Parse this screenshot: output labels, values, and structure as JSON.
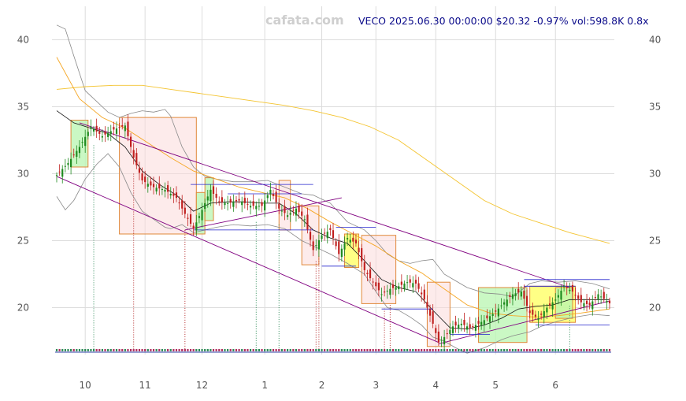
{
  "watermark": "cafata.com",
  "header": "VECO 2025.06.30 00:00:00 $20.32 -0.97% vol:598.8K 0.8x",
  "chart_data": {
    "type": "candlestick",
    "symbol": "VECO",
    "last": {
      "date": "2025.06.30 00:00:00",
      "close": 20.32,
      "change_pct": -0.97,
      "volume": "598.8K",
      "volume_ratio": "0.8x"
    },
    "ylim": [
      16.5,
      42.5
    ],
    "y_ticks": [
      20,
      25,
      30,
      35,
      40
    ],
    "x_ticks": [
      {
        "label": "10",
        "t": 10
      },
      {
        "label": "11",
        "t": 31
      },
      {
        "label": "12",
        "t": 51
      },
      {
        "label": "1",
        "t": 73
      },
      {
        "label": "2",
        "t": 93
      },
      {
        "label": "3",
        "t": 112
      },
      {
        "label": "4",
        "t": 133
      },
      {
        "label": "5",
        "t": 154
      },
      {
        "label": "6",
        "t": 175
      }
    ],
    "n_bars": 195,
    "grid": true,
    "price_keypoints": [
      [
        0,
        29.9
      ],
      [
        4,
        30.8
      ],
      [
        8,
        32.0
      ],
      [
        12,
        33.5
      ],
      [
        16,
        32.8
      ],
      [
        20,
        33.3
      ],
      [
        24,
        33.6
      ],
      [
        27,
        31.2
      ],
      [
        30,
        29.5
      ],
      [
        34,
        29.0
      ],
      [
        38,
        28.8
      ],
      [
        42,
        28.2
      ],
      [
        45,
        27.0
      ],
      [
        48,
        25.9
      ],
      [
        51,
        27.3
      ],
      [
        54,
        28.8
      ],
      [
        57,
        27.9
      ],
      [
        60,
        27.8
      ],
      [
        64,
        28.0
      ],
      [
        68,
        27.6
      ],
      [
        72,
        27.6
      ],
      [
        75,
        28.8
      ],
      [
        78,
        27.4
      ],
      [
        81,
        26.9
      ],
      [
        84,
        27.4
      ],
      [
        87,
        26.6
      ],
      [
        90,
        24.3
      ],
      [
        93,
        25.4
      ],
      [
        96,
        25.8
      ],
      [
        99,
        24.0
      ],
      [
        102,
        25.2
      ],
      [
        105,
        24.8
      ],
      [
        108,
        22.8
      ],
      [
        111,
        21.9
      ],
      [
        114,
        21.0
      ],
      [
        117,
        21.4
      ],
      [
        120,
        21.6
      ],
      [
        123,
        21.9
      ],
      [
        126,
        21.8
      ],
      [
        129,
        20.6
      ],
      [
        132,
        18.8
      ],
      [
        134,
        17.4
      ],
      [
        136,
        17.8
      ],
      [
        139,
        18.6
      ],
      [
        142,
        18.8
      ],
      [
        145,
        18.5
      ],
      [
        148,
        18.8
      ],
      [
        151,
        19.2
      ],
      [
        154,
        19.7
      ],
      [
        157,
        20.4
      ],
      [
        160,
        21.0
      ],
      [
        163,
        21.2
      ],
      [
        166,
        19.6
      ],
      [
        169,
        19.2
      ],
      [
        172,
        20.0
      ],
      [
        175,
        20.6
      ],
      [
        178,
        21.6
      ],
      [
        181,
        21.2
      ],
      [
        184,
        20.4
      ],
      [
        187,
        20.2
      ],
      [
        190,
        21.0
      ],
      [
        194,
        20.32
      ]
    ],
    "overlays": {
      "ma_short": [
        [
          0,
          34.7
        ],
        [
          6,
          33.8
        ],
        [
          12,
          33.4
        ],
        [
          18,
          33.0
        ],
        [
          24,
          32.0
        ],
        [
          30,
          30.2
        ],
        [
          36,
          29.2
        ],
        [
          42,
          28.4
        ],
        [
          48,
          27.2
        ],
        [
          54,
          27.8
        ],
        [
          60,
          27.9
        ],
        [
          66,
          27.9
        ],
        [
          72,
          27.8
        ],
        [
          78,
          27.8
        ],
        [
          84,
          27.0
        ],
        [
          90,
          25.8
        ],
        [
          96,
          25.2
        ],
        [
          102,
          24.8
        ],
        [
          108,
          23.5
        ],
        [
          114,
          22.1
        ],
        [
          120,
          21.5
        ],
        [
          126,
          21.2
        ],
        [
          132,
          19.8
        ],
        [
          138,
          18.5
        ],
        [
          144,
          18.4
        ],
        [
          150,
          18.7
        ],
        [
          156,
          19.2
        ],
        [
          162,
          19.9
        ],
        [
          168,
          20.1
        ],
        [
          174,
          20.2
        ],
        [
          180,
          20.6
        ],
        [
          186,
          20.6
        ],
        [
          194,
          20.6
        ]
      ],
      "ma_mid": [
        [
          0,
          38.7
        ],
        [
          8,
          35.6
        ],
        [
          16,
          34.2
        ],
        [
          24,
          33.4
        ],
        [
          32,
          32.3
        ],
        [
          40,
          31.2
        ],
        [
          48,
          30.2
        ],
        [
          56,
          29.6
        ],
        [
          64,
          29.0
        ],
        [
          72,
          28.6
        ],
        [
          80,
          28.2
        ],
        [
          88,
          27.4
        ],
        [
          96,
          26.4
        ],
        [
          104,
          25.5
        ],
        [
          112,
          24.6
        ],
        [
          120,
          23.5
        ],
        [
          128,
          22.6
        ],
        [
          136,
          21.4
        ],
        [
          144,
          20.2
        ],
        [
          152,
          19.6
        ],
        [
          160,
          19.4
        ],
        [
          168,
          19.3
        ],
        [
          176,
          19.4
        ],
        [
          184,
          19.6
        ],
        [
          194,
          19.9
        ]
      ],
      "ma_long": [
        [
          0,
          36.3
        ],
        [
          10,
          36.5
        ],
        [
          20,
          36.6
        ],
        [
          30,
          36.6
        ],
        [
          40,
          36.3
        ],
        [
          50,
          36.0
        ],
        [
          60,
          35.7
        ],
        [
          70,
          35.4
        ],
        [
          80,
          35.1
        ],
        [
          90,
          34.7
        ],
        [
          100,
          34.2
        ],
        [
          110,
          33.5
        ],
        [
          120,
          32.5
        ],
        [
          130,
          31.0
        ],
        [
          140,
          29.5
        ],
        [
          150,
          28.0
        ],
        [
          160,
          27.0
        ],
        [
          170,
          26.3
        ],
        [
          180,
          25.6
        ],
        [
          194,
          24.8
        ]
      ],
      "band_upper": [
        [
          0,
          41.1
        ],
        [
          3,
          40.8
        ],
        [
          6,
          38.8
        ],
        [
          10,
          36.2
        ],
        [
          14,
          35.4
        ],
        [
          18,
          34.6
        ],
        [
          22,
          34.2
        ],
        [
          26,
          34.5
        ],
        [
          30,
          34.7
        ],
        [
          34,
          34.6
        ],
        [
          38,
          34.8
        ],
        [
          40,
          34.3
        ],
        [
          44,
          32.0
        ],
        [
          48,
          30.5
        ],
        [
          52,
          29.8
        ],
        [
          56,
          29.6
        ],
        [
          62,
          29.4
        ],
        [
          68,
          29.4
        ],
        [
          74,
          29.5
        ],
        [
          80,
          29.0
        ],
        [
          86,
          28.5
        ],
        [
          90,
          28.4
        ],
        [
          96,
          27.8
        ],
        [
          102,
          26.4
        ],
        [
          108,
          25.8
        ],
        [
          112,
          25.0
        ],
        [
          116,
          24.0
        ],
        [
          120,
          23.5
        ],
        [
          124,
          23.3
        ],
        [
          128,
          23.5
        ],
        [
          132,
          23.6
        ],
        [
          136,
          22.5
        ],
        [
          140,
          22.0
        ],
        [
          144,
          21.5
        ],
        [
          150,
          21.1
        ],
        [
          156,
          21.0
        ],
        [
          160,
          20.8
        ],
        [
          166,
          21.8
        ],
        [
          170,
          22.0
        ],
        [
          176,
          21.9
        ],
        [
          182,
          22.0
        ],
        [
          188,
          21.8
        ],
        [
          194,
          21.4
        ]
      ],
      "band_lower": [
        [
          0,
          28.3
        ],
        [
          3,
          27.3
        ],
        [
          6,
          28.0
        ],
        [
          10,
          29.6
        ],
        [
          14,
          30.7
        ],
        [
          18,
          31.5
        ],
        [
          22,
          30.5
        ],
        [
          26,
          28.6
        ],
        [
          30,
          27.2
        ],
        [
          34,
          26.6
        ],
        [
          38,
          26.0
        ],
        [
          40,
          25.9
        ],
        [
          44,
          26.2
        ],
        [
          48,
          25.6
        ],
        [
          52,
          25.8
        ],
        [
          56,
          26.0
        ],
        [
          62,
          26.2
        ],
        [
          68,
          26.1
        ],
        [
          74,
          26.2
        ],
        [
          80,
          25.9
        ],
        [
          86,
          25.0
        ],
        [
          90,
          24.6
        ],
        [
          96,
          24.0
        ],
        [
          102,
          23.3
        ],
        [
          108,
          22.5
        ],
        [
          112,
          21.2
        ],
        [
          116,
          20.0
        ],
        [
          120,
          19.8
        ],
        [
          124,
          19.3
        ],
        [
          128,
          18.7
        ],
        [
          132,
          17.8
        ],
        [
          136,
          17.5
        ],
        [
          140,
          17.0
        ],
        [
          144,
          16.6
        ],
        [
          150,
          17.0
        ],
        [
          156,
          17.6
        ],
        [
          160,
          17.9
        ],
        [
          166,
          18.2
        ],
        [
          170,
          18.6
        ],
        [
          176,
          19.0
        ],
        [
          182,
          19.3
        ],
        [
          188,
          19.5
        ],
        [
          194,
          19.4
        ]
      ],
      "trendlines": [
        {
          "color": "#800080",
          "from": [
            8,
            33.8
          ],
          "to": [
            180,
            21.5
          ]
        },
        {
          "color": "#800080",
          "from": [
            0,
            29.8
          ],
          "to": [
            134,
            17.4
          ]
        },
        {
          "color": "#800080",
          "from": [
            45,
            25.8
          ],
          "to": [
            100,
            28.2
          ]
        },
        {
          "color": "#800080",
          "from": [
            134,
            17.3
          ],
          "to": [
            194,
            20.5
          ]
        }
      ],
      "hlines": [
        {
          "y": 29.2,
          "from": 47,
          "to": 90
        },
        {
          "y": 28.5,
          "from": 60,
          "to": 86
        },
        {
          "y": 25.8,
          "from": 48,
          "to": 90
        },
        {
          "y": 23.1,
          "from": 93,
          "to": 105
        },
        {
          "y": 26.0,
          "from": 98,
          "to": 112
        },
        {
          "y": 19.9,
          "from": 114,
          "to": 132
        },
        {
          "y": 18.0,
          "from": 138,
          "to": 152
        },
        {
          "y": 22.1,
          "from": 164,
          "to": 194
        },
        {
          "y": 18.7,
          "from": 168,
          "to": 194
        },
        {
          "y": 21.6,
          "from": 164,
          "to": 182
        }
      ],
      "boxes": [
        {
          "kind": "up",
          "x0": 5,
          "x1": 11,
          "y0": 30.5,
          "y1": 34.0
        },
        {
          "kind": "down",
          "x0": 22,
          "x1": 49,
          "y0": 25.5,
          "y1": 34.2
        },
        {
          "kind": "up",
          "x0": 49,
          "x1": 52,
          "y0": 25.5,
          "y1": 28.6
        },
        {
          "kind": "up",
          "x0": 52,
          "x1": 55,
          "y0": 26.5,
          "y1": 29.7
        },
        {
          "kind": "down",
          "x0": 78,
          "x1": 82,
          "y0": 25.8,
          "y1": 29.5
        },
        {
          "kind": "down",
          "x0": 86,
          "x1": 92,
          "y0": 23.2,
          "y1": 27.6
        },
        {
          "kind": "yellow",
          "x0": 101,
          "x1": 106,
          "y0": 23.0,
          "y1": 25.5
        },
        {
          "kind": "down",
          "x0": 107,
          "x1": 119,
          "y0": 20.3,
          "y1": 25.4
        },
        {
          "kind": "down",
          "x0": 130,
          "x1": 138,
          "y0": 17.1,
          "y1": 21.9
        },
        {
          "kind": "up",
          "x0": 148,
          "x1": 165,
          "y0": 17.4,
          "y1": 21.5
        },
        {
          "kind": "yellow",
          "x0": 166,
          "x1": 182,
          "y0": 18.9,
          "y1": 21.6
        },
        {
          "kind": "up",
          "x0": 175,
          "x1": 181,
          "y0": 19.2,
          "y1": 21.5
        }
      ],
      "signal_lines": [
        {
          "x": 13,
          "color": "#2e8b57"
        },
        {
          "x": 27,
          "color": "#b22222"
        },
        {
          "x": 45,
          "color": "#b22222"
        },
        {
          "x": 70,
          "color": "#2e8b57"
        },
        {
          "x": 78,
          "color": "#2e8b57"
        },
        {
          "x": 91,
          "color": "#b22222"
        },
        {
          "x": 92,
          "color": "#b22222"
        },
        {
          "x": 115,
          "color": "#b22222"
        },
        {
          "x": 117,
          "color": "#b22222"
        },
        {
          "x": 137,
          "color": "#b22222"
        },
        {
          "x": 180,
          "color": "#2e8b57"
        }
      ]
    }
  }
}
